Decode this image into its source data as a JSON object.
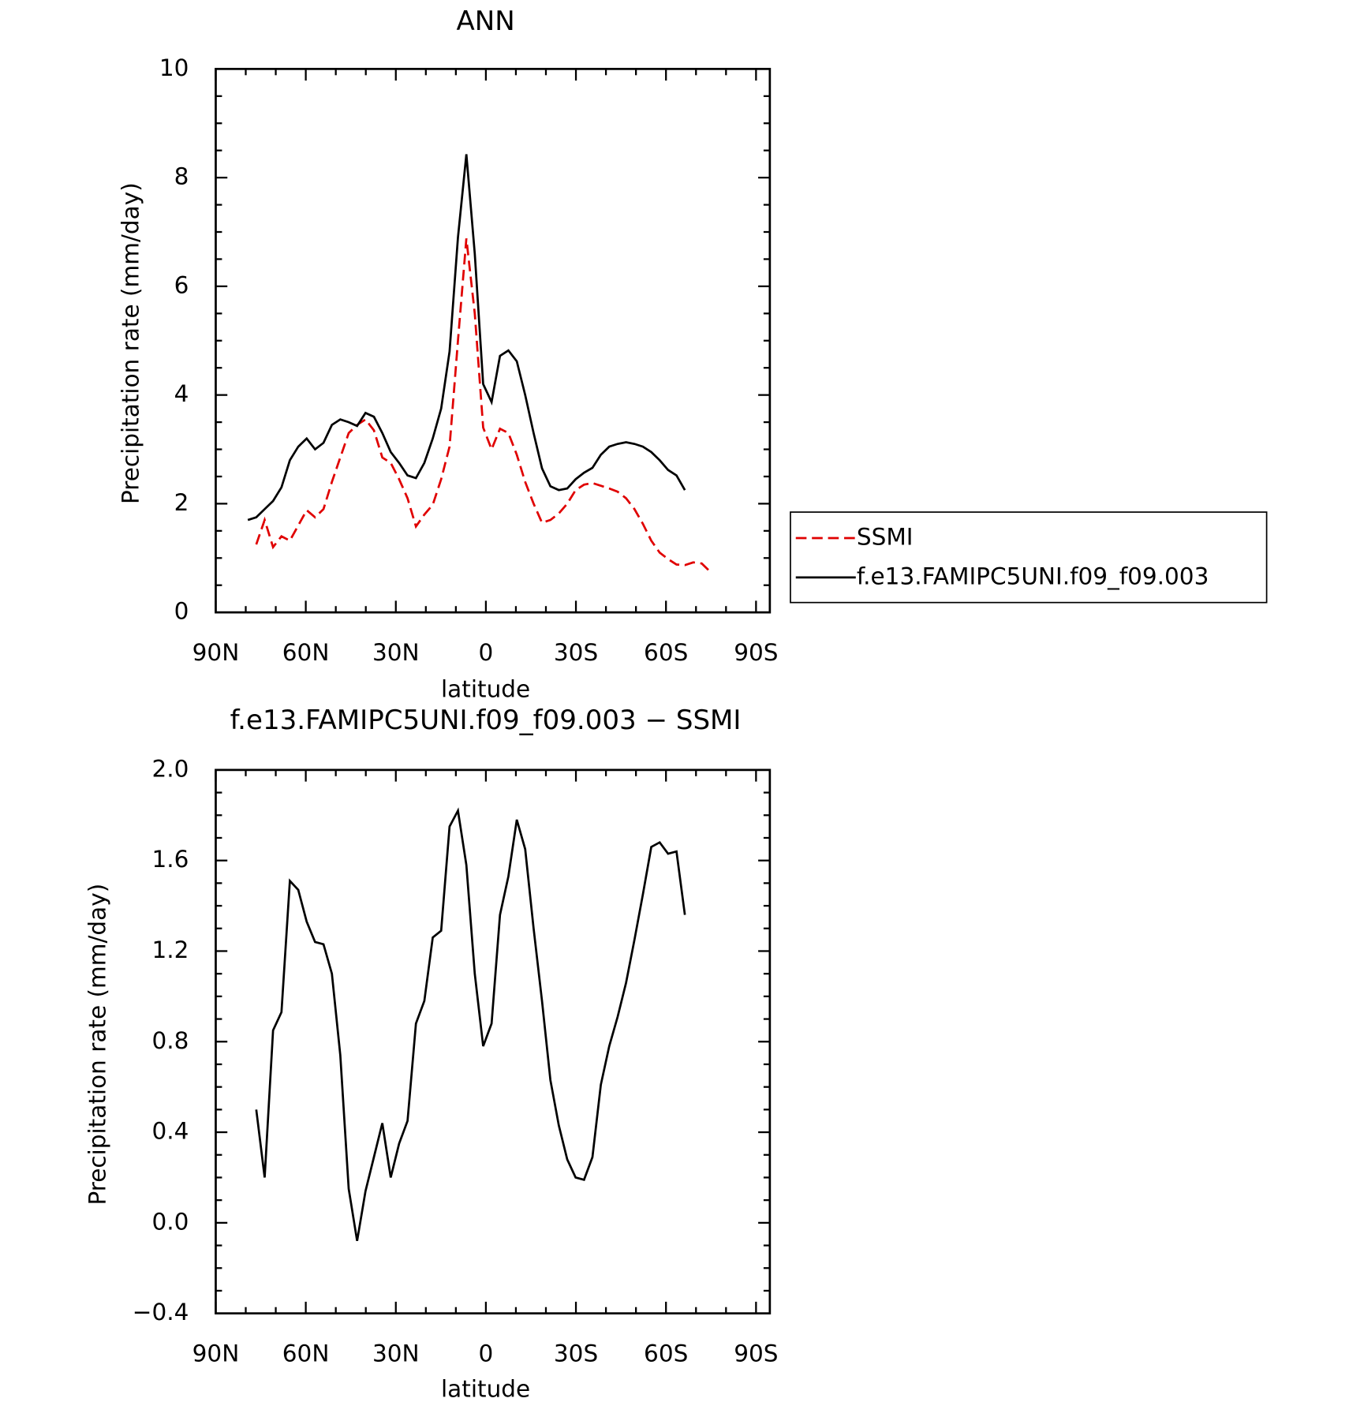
{
  "chart_data": [
    {
      "type": "line",
      "title": "ANN",
      "x_label": "latitude",
      "y_label": "Precipitation rate (mm/day)",
      "x": [
        79.3,
        76.5,
        73.7,
        70.9,
        68.1,
        65.3,
        62.5,
        59.7,
        56.9,
        54.1,
        51.3,
        48.5,
        45.7,
        42.9,
        40.1,
        37.3,
        34.5,
        31.7,
        28.9,
        26.1,
        23.3,
        20.5,
        17.7,
        14.9,
        12.1,
        9.3,
        6.5,
        3.7,
        0.9,
        -1.9,
        -4.7,
        -7.5,
        -10.3,
        -13.1,
        -15.9,
        -18.7,
        -21.5,
        -24.3,
        -27.1,
        -29.9,
        -32.7,
        -35.5,
        -38.3,
        -41.1,
        -43.9,
        -46.7,
        -49.5,
        -52.3,
        -55.1,
        -57.9,
        -60.7,
        -63.5,
        -66.3,
        -69.1,
        -71.9,
        -74.7
      ],
      "series": [
        {
          "name": "SSMI",
          "color": "#e00000",
          "line_style": "dashed",
          "values": [
            null,
            1.25,
            1.7,
            1.2,
            1.4,
            1.32,
            1.6,
            1.88,
            1.75,
            1.9,
            2.4,
            2.85,
            3.3,
            3.45,
            3.55,
            3.35,
            2.85,
            2.75,
            2.45,
            2.1,
            1.58,
            1.8,
            1.98,
            2.45,
            3.05,
            5.0,
            6.88,
            5.5,
            3.4,
            3.0,
            3.38,
            3.3,
            2.9,
            2.4,
            2.0,
            1.65,
            1.7,
            1.82,
            2.0,
            2.25,
            2.35,
            2.38,
            2.33,
            2.28,
            2.22,
            2.1,
            1.9,
            1.63,
            1.32,
            1.1,
            0.98,
            0.88,
            0.87,
            0.92,
            0.9,
            0.75
          ]
        },
        {
          "name": "f.e13.FAMIPC5UNI.f09_f09.003",
          "color": "#000000",
          "line_style": "solid",
          "values": [
            1.7,
            1.75,
            1.9,
            2.05,
            2.3,
            2.8,
            3.05,
            3.2,
            3.0,
            3.12,
            3.45,
            3.55,
            3.5,
            3.43,
            3.67,
            3.6,
            3.3,
            2.95,
            2.75,
            2.52,
            2.47,
            2.75,
            3.2,
            3.75,
            4.8,
            6.9,
            8.43,
            6.6,
            4.2,
            3.87,
            4.72,
            4.82,
            4.62,
            4.0,
            3.3,
            2.65,
            2.32,
            2.25,
            2.28,
            2.45,
            2.57,
            2.66,
            2.9,
            3.05,
            3.1,
            3.13,
            3.1,
            3.05,
            2.95,
            2.8,
            2.62,
            2.52,
            2.25,
            null,
            null,
            null
          ]
        }
      ],
      "xlim": [
        90,
        -94.6
      ],
      "xticks": [
        {
          "value": 90,
          "label": "90N"
        },
        {
          "value": 60,
          "label": "60N"
        },
        {
          "value": 30,
          "label": "30N"
        },
        0,
        {
          "value": -30,
          "label": "30S"
        },
        {
          "value": -60,
          "label": "60S"
        },
        {
          "value": -90,
          "label": "90S"
        }
      ],
      "xminor": [
        80,
        70,
        50,
        40,
        20,
        10,
        -10,
        -20,
        -40,
        -50,
        -70,
        -80
      ],
      "ylim": [
        0,
        10
      ],
      "yticks": [
        0,
        2,
        4,
        6,
        8,
        10
      ],
      "yminor": [
        0.5,
        1,
        1.5,
        2.5,
        3,
        3.5,
        4.5,
        5,
        5.5,
        6.5,
        7,
        7.5,
        8.5,
        9,
        9.5
      ],
      "legend": "outside right"
    },
    {
      "type": "line",
      "title": "f.e13.FAMIPC5UNI.f09_f09.003 − SSMI",
      "x_label": "latitude",
      "y_label": "Precipitation rate (mm/day)",
      "x": [
        76.5,
        73.7,
        70.9,
        68.1,
        65.3,
        62.5,
        59.7,
        56.9,
        54.1,
        51.3,
        48.5,
        45.7,
        42.9,
        40.1,
        37.3,
        34.5,
        31.7,
        28.9,
        26.1,
        23.3,
        20.5,
        17.7,
        14.9,
        12.1,
        9.3,
        6.5,
        3.7,
        0.9,
        -1.9,
        -4.7,
        -7.5,
        -10.3,
        -13.1,
        -15.9,
        -18.7,
        -21.5,
        -24.3,
        -27.1,
        -29.9,
        -32.7,
        -35.5,
        -38.3,
        -41.1,
        -43.9,
        -46.7,
        -49.5,
        -52.3,
        -55.1,
        -57.9,
        -60.7,
        -63.5,
        -66.3
      ],
      "series": [
        {
          "color": "#000000",
          "line_style": "solid",
          "values": [
            0.5,
            0.2,
            0.85,
            0.93,
            1.51,
            1.47,
            1.33,
            1.24,
            1.23,
            1.1,
            0.74,
            0.15,
            -0.08,
            0.14,
            0.29,
            0.44,
            0.2,
            0.35,
            0.45,
            0.88,
            0.98,
            1.26,
            1.29,
            1.75,
            1.82,
            1.58,
            1.1,
            0.78,
            0.88,
            1.36,
            1.53,
            1.78,
            1.65,
            1.3,
            0.98,
            0.63,
            0.43,
            0.28,
            0.2,
            0.19,
            0.29,
            0.61,
            0.78,
            0.91,
            1.06,
            1.25,
            1.45,
            1.66,
            1.68,
            1.63,
            1.64,
            1.36
          ]
        }
      ],
      "xlim": [
        90,
        -94.6
      ],
      "xticks": [
        {
          "value": 90,
          "label": "90N"
        },
        {
          "value": 60,
          "label": "60N"
        },
        {
          "value": 30,
          "label": "30N"
        },
        0,
        {
          "value": -30,
          "label": "30S"
        },
        {
          "value": -60,
          "label": "60S"
        },
        {
          "value": -90,
          "label": "90S"
        }
      ],
      "xminor": [
        80,
        70,
        50,
        40,
        20,
        10,
        -10,
        -20,
        -40,
        -50,
        -70,
        -80
      ],
      "ylim": [
        -0.4,
        2.0
      ],
      "yticks": [
        {
          "value": 2.0,
          "label": "2.0"
        },
        {
          "value": 1.6,
          "label": "1.6"
        },
        {
          "value": 1.2,
          "label": "1.2"
        },
        {
          "value": 0.8,
          "label": "0.8"
        },
        {
          "value": 0.4,
          "label": "0.4"
        },
        {
          "value": 0.0,
          "label": "0.0"
        },
        {
          "value": -0.4,
          "label": "−0.4"
        }
      ],
      "yminor": [
        -0.3,
        -0.2,
        -0.1,
        0.1,
        0.2,
        0.3,
        0.5,
        0.6,
        0.7,
        0.9,
        1.0,
        1.1,
        1.3,
        1.4,
        1.5,
        1.7,
        1.8,
        1.9
      ]
    }
  ]
}
